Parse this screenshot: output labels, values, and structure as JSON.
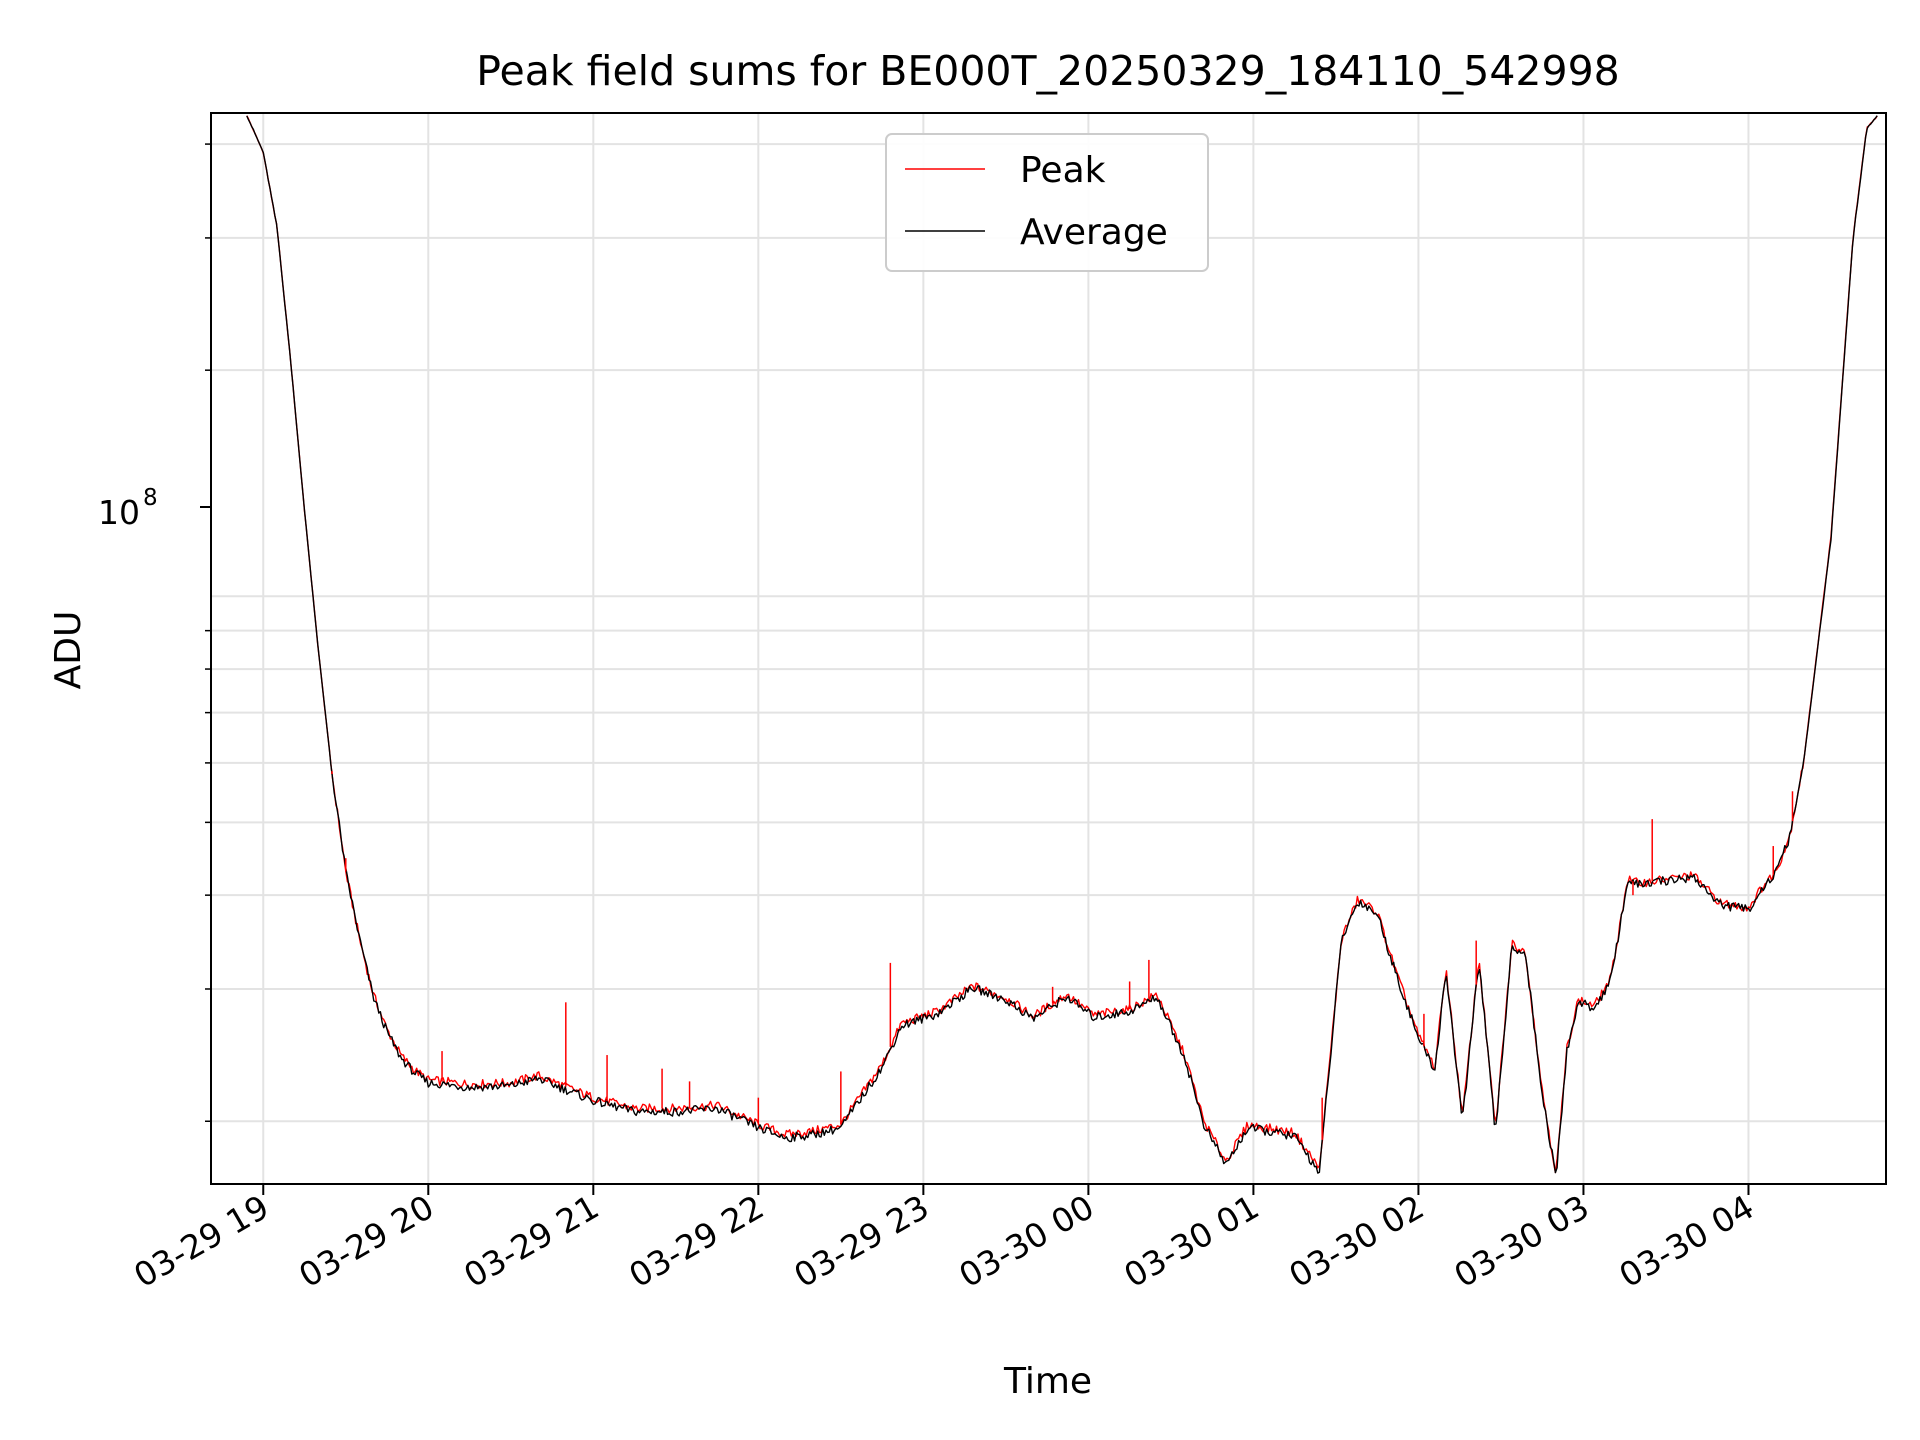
{
  "chart_data": {
    "type": "line",
    "title": "Peak field sums for BE000T_20250329_184110_542998",
    "xlabel": "Time",
    "ylabel": "ADU",
    "yscale": "log",
    "ylim": [
      16500000,
      440000000
    ],
    "xlim": [
      "03-29 18:41",
      "03-30 04:50"
    ],
    "grid": true,
    "legend_position": "top-center",
    "x_ticks": [
      "03-29 19",
      "03-29 20",
      "03-29 21",
      "03-29 22",
      "03-29 23",
      "03-30 00",
      "03-30 01",
      "03-30 02",
      "03-30 03",
      "03-30 04"
    ],
    "y_tick_label": {
      "base": "10",
      "exponent": "8",
      "value": 100000000
    },
    "x": [
      "03-29 18:54",
      "03-29 19:00",
      "03-29 19:05",
      "03-29 19:10",
      "03-29 19:15",
      "03-29 19:20",
      "03-29 19:25",
      "03-29 19:30",
      "03-29 19:35",
      "03-29 19:40",
      "03-29 19:45",
      "03-29 19:50",
      "03-29 19:55",
      "03-29 20:00",
      "03-29 20:15",
      "03-29 20:30",
      "03-29 20:40",
      "03-29 21:00",
      "03-29 21:15",
      "03-29 21:30",
      "03-29 21:45",
      "03-29 22:00",
      "03-29 22:10",
      "03-29 22:20",
      "03-29 22:30",
      "03-29 22:45",
      "03-29 22:52",
      "03-29 23:05",
      "03-29 23:18",
      "03-29 23:30",
      "03-29 23:40",
      "03-29 23:52",
      "03-30 00:02",
      "03-30 00:15",
      "03-30 00:25",
      "03-30 00:35",
      "03-30 00:42",
      "03-30 00:50",
      "03-30 00:58",
      "03-30 01:15",
      "03-30 01:24",
      "03-30 01:32",
      "03-30 01:38",
      "03-30 01:45",
      "03-30 01:52",
      "03-30 02:00",
      "03-30 02:06",
      "03-30 02:10",
      "03-30 02:16",
      "03-30 02:22",
      "03-30 02:28",
      "03-30 02:34",
      "03-30 02:39",
      "03-30 02:45",
      "03-30 02:50",
      "03-30 02:54",
      "03-30 02:58",
      "03-30 03:04",
      "03-30 03:10",
      "03-30 03:16",
      "03-30 03:20",
      "03-30 03:30",
      "03-30 03:40",
      "03-30 03:50",
      "03-30 04:00",
      "03-30 04:05",
      "03-30 04:10",
      "03-30 04:15",
      "03-30 04:20",
      "03-30 04:30",
      "03-30 04:38",
      "03-30 04:43",
      "03-30 04:47"
    ],
    "series": [
      {
        "name": "Peak",
        "color": "#ff0000",
        "values": [
          437000000,
          390000000,
          310000000,
          205000000,
          130000000,
          85000000,
          58000000,
          43000000,
          35000000,
          29500000,
          26500000,
          24500000,
          23400000,
          22700000,
          22400000,
          22500000,
          23000000,
          21500000,
          20800000,
          20800000,
          21000000,
          19800000,
          19200000,
          19400000,
          19800000,
          23800000,
          27000000,
          28000000,
          30300000,
          29200000,
          27600000,
          29500000,
          27700000,
          28200000,
          29500000,
          24500000,
          20000000,
          17700000,
          19800000,
          19300000,
          17300000,
          35000000,
          39500000,
          38000000,
          31500000,
          26000000,
          23600000,
          32000000,
          20200000,
          33000000,
          19500000,
          34500000,
          33500000,
          22000000,
          17000000,
          25000000,
          29000000,
          28500000,
          31000000,
          42000000,
          41500000,
          42000000,
          42500000,
          39000000,
          38500000,
          41000000,
          43000000,
          48000000,
          60000000,
          120000000,
          300000000,
          420000000,
          437000000
        ]
      },
      {
        "name": "Average",
        "color": "#000000",
        "values": [
          437000000,
          390000000,
          310000000,
          205000000,
          130000000,
          85000000,
          58000000,
          43000000,
          35000000,
          29300000,
          26300000,
          24300000,
          23200000,
          22500000,
          22200000,
          22300000,
          22800000,
          21300000,
          20600000,
          20600000,
          20800000,
          19600000,
          19000000,
          19200000,
          19600000,
          23600000,
          26800000,
          27800000,
          30100000,
          29000000,
          27400000,
          29300000,
          27500000,
          28000000,
          29300000,
          24300000,
          19800000,
          17500000,
          19600000,
          19100000,
          17100000,
          34800000,
          39300000,
          37800000,
          31300000,
          25800000,
          23400000,
          31800000,
          20000000,
          32800000,
          19300000,
          34300000,
          33300000,
          21800000,
          16800000,
          24800000,
          28800000,
          28300000,
          30800000,
          41800000,
          41300000,
          41800000,
          42300000,
          38800000,
          38300000,
          40800000,
          42800000,
          47800000,
          59800000,
          119000000,
          299000000,
          419000000,
          437000000
        ]
      }
    ],
    "spikes": [
      {
        "x": "03-29 19:25",
        "value": 58500000
      },
      {
        "x": "03-29 19:30",
        "value": 44800000
      },
      {
        "x": "03-29 20:05",
        "value": 24800000
      },
      {
        "x": "03-29 20:50",
        "value": 28800000
      },
      {
        "x": "03-29 21:05",
        "value": 24500000
      },
      {
        "x": "03-29 21:25",
        "value": 23500000
      },
      {
        "x": "03-29 21:35",
        "value": 22600000
      },
      {
        "x": "03-29 22:00",
        "value": 21500000
      },
      {
        "x": "03-29 22:30",
        "value": 23300000
      },
      {
        "x": "03-29 22:48",
        "value": 32500000
      },
      {
        "x": "03-29 23:25",
        "value": 29600000
      },
      {
        "x": "03-29 23:47",
        "value": 30200000
      },
      {
        "x": "03-30 00:15",
        "value": 30700000
      },
      {
        "x": "03-30 00:22",
        "value": 32800000
      },
      {
        "x": "03-30 01:25",
        "value": 21500000
      },
      {
        "x": "03-30 02:02",
        "value": 27800000
      },
      {
        "x": "03-30 02:21",
        "value": 34800000
      },
      {
        "x": "03-30 03:18",
        "value": 40000000
      },
      {
        "x": "03-30 03:25",
        "value": 50500000
      },
      {
        "x": "03-30 04:09",
        "value": 46500000
      },
      {
        "x": "03-30 04:16",
        "value": 55000000
      }
    ]
  }
}
